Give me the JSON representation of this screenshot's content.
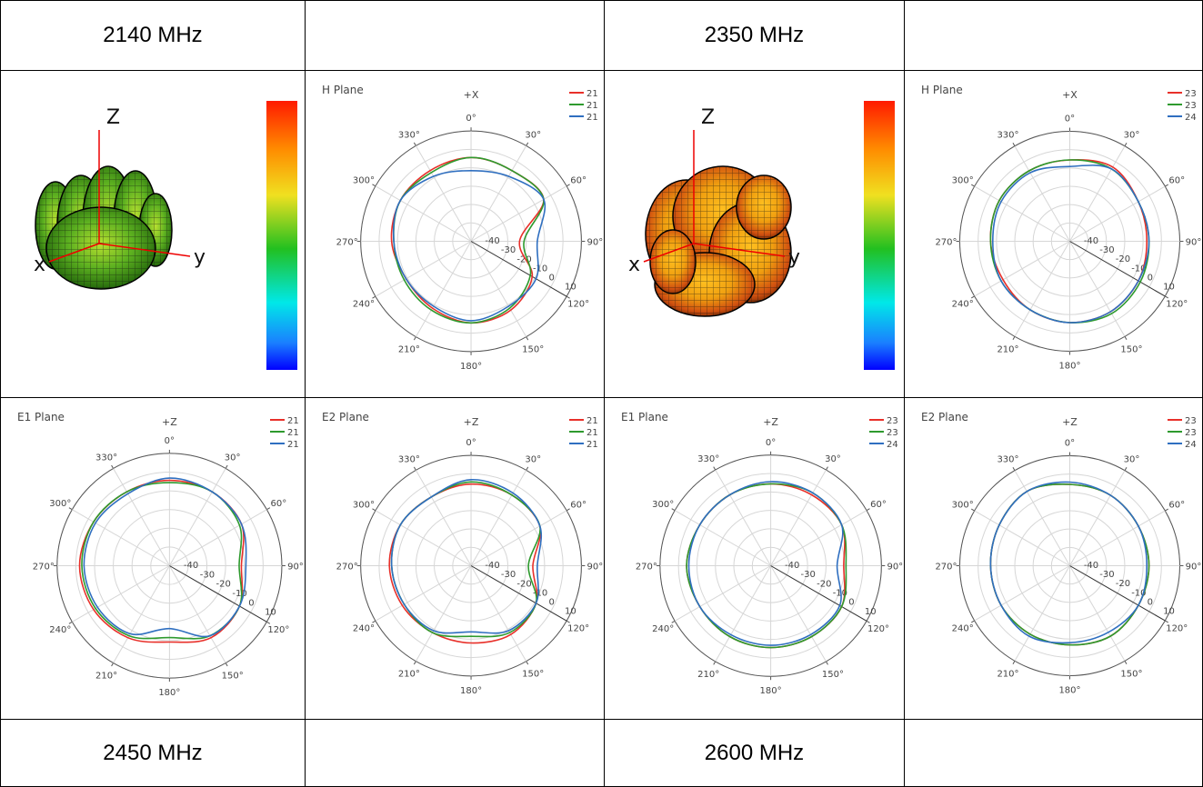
{
  "header_row": {
    "left": "2140 MHz",
    "right": "2350 MHz"
  },
  "footer_row": {
    "left": "2450 MHz",
    "right": "2600 MHz"
  },
  "colors": {
    "red": "#e8302a",
    "green": "#2e9a2e",
    "blue": "#2f6fc0"
  },
  "pattern3d": [
    {
      "axes": {
        "z": "Z",
        "x": "x",
        "y": "y"
      }
    },
    {
      "axes": {
        "z": "Z",
        "x": "x",
        "y": "y"
      }
    }
  ],
  "chart_data": [
    {
      "type": "polar",
      "title": "H Plane",
      "direction_label": "+X",
      "angle_ticks": [
        "0°",
        "30°",
        "60°",
        "90°",
        "120°",
        "150°",
        "180°",
        "210°",
        "240°",
        "270°",
        "300°",
        "330°"
      ],
      "radial_ticks": [
        "-40",
        "-30",
        "-20",
        "-10",
        "0",
        "10"
      ],
      "radial_range": [
        -40,
        10
      ],
      "legend": [
        "21",
        "21",
        "21"
      ],
      "angles_deg": [
        0,
        30,
        60,
        90,
        120,
        150,
        180,
        210,
        240,
        270,
        300,
        330
      ],
      "series": [
        {
          "color": "red",
          "values": [
            -2,
            -3,
            -2,
            -18,
            -8,
            -4,
            -3,
            -5,
            -6,
            -4,
            -3,
            -3
          ]
        },
        {
          "color": "green",
          "values": [
            -2,
            -3,
            -2,
            -16,
            -9,
            -5,
            -3,
            -4,
            -5,
            -5,
            -3,
            -4
          ]
        },
        {
          "color": "blue",
          "values": [
            -8,
            -6,
            -2,
            -10,
            -6,
            -6,
            -4,
            -6,
            -6,
            -5,
            -3,
            -6
          ]
        }
      ]
    },
    {
      "type": "polar",
      "title": "H Plane",
      "direction_label": "+X",
      "angle_ticks": [
        "0°",
        "30°",
        "60°",
        "90°",
        "120°",
        "150°",
        "180°",
        "210°",
        "240°",
        "270°",
        "300°",
        "330°"
      ],
      "radial_ticks": [
        "-40",
        "-30",
        "-20",
        "-10",
        "0",
        "10"
      ],
      "radial_range": [
        -40,
        10
      ],
      "legend": [
        "23",
        "23",
        "24"
      ],
      "angles_deg": [
        0,
        30,
        60,
        90,
        120,
        150,
        180,
        210,
        240,
        270,
        300,
        330
      ],
      "series": [
        {
          "color": "red",
          "values": [
            -3,
            -1,
            -4,
            -5,
            -4,
            -3,
            -3,
            -4,
            -5,
            -4,
            -3,
            -3
          ]
        },
        {
          "color": "green",
          "values": [
            -3,
            -2,
            -4,
            -4,
            -3,
            -2,
            -3,
            -4,
            -4,
            -4,
            -3,
            -3
          ]
        },
        {
          "color": "blue",
          "values": [
            -6,
            -2,
            -4,
            -4,
            -4,
            -3,
            -3,
            -4,
            -4,
            -5,
            -4,
            -4
          ]
        }
      ]
    },
    {
      "type": "polar",
      "title": "E1 Plane",
      "direction_label": "+Z",
      "angle_ticks": [
        "0°",
        "30°",
        "60°",
        "90°",
        "120°",
        "150°",
        "180°",
        "210°",
        "240°",
        "270°",
        "300°",
        "330°"
      ],
      "radial_ticks": [
        "-40",
        "-30",
        "-20",
        "-10",
        "0",
        "10"
      ],
      "radial_range": [
        -40,
        10
      ],
      "legend": [
        "21",
        "21",
        "21"
      ],
      "angles_deg": [
        0,
        30,
        60,
        90,
        120,
        150,
        180,
        210,
        240,
        270,
        300,
        330
      ],
      "series": [
        {
          "color": "red",
          "values": [
            -2,
            -2,
            -3,
            -8,
            -4,
            -3,
            -6,
            -3,
            -1,
            0,
            -1,
            -2
          ]
        },
        {
          "color": "green",
          "values": [
            -3,
            -2,
            -4,
            -9,
            -4,
            -4,
            -8,
            -4,
            -2,
            -1,
            -1,
            -2
          ]
        },
        {
          "color": "blue",
          "values": [
            -1,
            -2,
            -3,
            -6,
            -4,
            -4,
            -12,
            -5,
            -3,
            -2,
            -2,
            -3
          ]
        }
      ]
    },
    {
      "type": "polar",
      "title": "E2 Plane",
      "direction_label": "+Z",
      "angle_ticks": [
        "0°",
        "30°",
        "60°",
        "90°",
        "120°",
        "150°",
        "180°",
        "210°",
        "240°",
        "270°",
        "300°",
        "330°"
      ],
      "radial_ticks": [
        "-40",
        "-30",
        "-20",
        "-10",
        "0",
        "10"
      ],
      "radial_range": [
        -40,
        10
      ],
      "legend": [
        "21",
        "21",
        "21"
      ],
      "angles_deg": [
        0,
        30,
        60,
        90,
        120,
        150,
        180,
        210,
        240,
        270,
        300,
        330
      ],
      "series": [
        {
          "color": "red",
          "values": [
            -3,
            -3,
            -4,
            -12,
            -6,
            -4,
            -5,
            -5,
            -4,
            -3,
            -3,
            -4
          ]
        },
        {
          "color": "green",
          "values": [
            -2,
            -3,
            -4,
            -14,
            -6,
            -5,
            -8,
            -5,
            -5,
            -4,
            -3,
            -4
          ]
        },
        {
          "color": "blue",
          "values": [
            -1,
            -2,
            -4,
            -10,
            -6,
            -6,
            -10,
            -6,
            -5,
            -4,
            -3,
            -4
          ]
        }
      ]
    },
    {
      "type": "polar",
      "title": "E1 Plane",
      "direction_label": "+Z",
      "angle_ticks": [
        "0°",
        "30°",
        "60°",
        "90°",
        "120°",
        "150°",
        "180°",
        "210°",
        "240°",
        "270°",
        "300°",
        "330°"
      ],
      "radial_ticks": [
        "-40",
        "-30",
        "-20",
        "-10",
        "0",
        "10"
      ],
      "radial_range": [
        -40,
        10
      ],
      "legend": [
        "23",
        "23",
        "24"
      ],
      "angles_deg": [
        0,
        30,
        60,
        90,
        120,
        150,
        180,
        210,
        240,
        270,
        300,
        330
      ],
      "series": [
        {
          "color": "red",
          "values": [
            -3,
            -3,
            -3,
            -7,
            -3,
            -3,
            -3,
            -3,
            -3,
            -2,
            -3,
            -3
          ]
        },
        {
          "color": "green",
          "values": [
            -3,
            -2,
            -3,
            -6,
            -3,
            -3,
            -3,
            -3,
            -3,
            -2,
            -3,
            -3
          ]
        },
        {
          "color": "blue",
          "values": [
            -2,
            -2,
            -3,
            -10,
            -4,
            -4,
            -4,
            -4,
            -3,
            -3,
            -3,
            -3
          ]
        }
      ]
    },
    {
      "type": "polar",
      "title": "E2 Plane",
      "direction_label": "+Z",
      "angle_ticks": [
        "0°",
        "30°",
        "60°",
        "90°",
        "120°",
        "150°",
        "180°",
        "210°",
        "240°",
        "270°",
        "300°",
        "330°"
      ],
      "radial_ticks": [
        "-40",
        "-30",
        "-20",
        "-10",
        "0",
        "10"
      ],
      "radial_range": [
        -40,
        10
      ],
      "legend": [
        "23",
        "23",
        "24"
      ],
      "angles_deg": [
        0,
        30,
        60,
        90,
        120,
        150,
        180,
        210,
        240,
        270,
        300,
        330
      ],
      "series": [
        {
          "color": "red",
          "values": [
            -3,
            -3,
            -4,
            -4,
            -4,
            -3,
            -4,
            -4,
            -4,
            -4,
            -3,
            -1
          ]
        },
        {
          "color": "green",
          "values": [
            -3,
            -3,
            -4,
            -4,
            -4,
            -3,
            -4,
            -4,
            -4,
            -4,
            -3,
            -1
          ]
        },
        {
          "color": "blue",
          "values": [
            -2,
            -3,
            -4,
            -5,
            -4,
            -5,
            -5,
            -3,
            -4,
            -4,
            -3,
            -1
          ]
        }
      ]
    }
  ]
}
